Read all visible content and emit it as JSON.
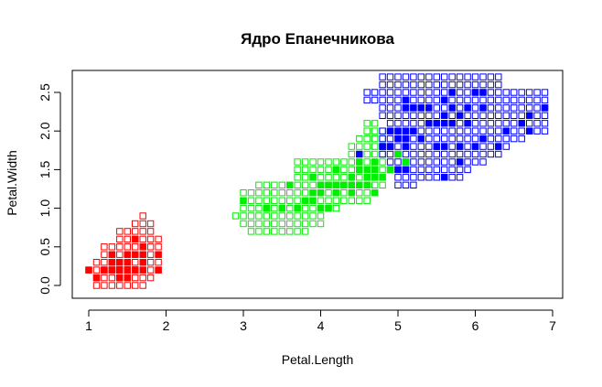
{
  "chart_data": {
    "type": "scatter",
    "title": "Ядро Епанечникова",
    "xlabel": "Petal.Length",
    "ylabel": "Petal.Width",
    "xlim": [
      0.8,
      7.1
    ],
    "ylim": [
      -0.1,
      2.75
    ],
    "x_ticks": [
      "1",
      "2",
      "3",
      "4",
      "5",
      "6",
      "7"
    ],
    "y_ticks": [
      "0.0",
      "0.5",
      "1.0",
      "1.5",
      "2.0",
      "2.5"
    ],
    "grid": false,
    "marker_grid_step": 0.1,
    "classes": [
      {
        "color": "#ff0000",
        "region_rows": [
          {
            "y": 0.9,
            "x_from": 1.7,
            "x_to": 1.7
          },
          {
            "y": 0.8,
            "x_from": 1.6,
            "x_to": 1.8
          },
          {
            "y": 0.7,
            "x_from": 1.4,
            "x_to": 1.8
          },
          {
            "y": 0.6,
            "x_from": 1.4,
            "x_to": 1.9
          },
          {
            "y": 0.5,
            "x_from": 1.2,
            "x_to": 1.9
          },
          {
            "y": 0.4,
            "x_from": 1.2,
            "x_to": 1.9
          },
          {
            "y": 0.3,
            "x_from": 1.1,
            "x_to": 1.9
          },
          {
            "y": 0.2,
            "x_from": 1.0,
            "x_to": 1.9
          },
          {
            "y": 0.1,
            "x_from": 1.1,
            "x_to": 1.8
          },
          {
            "y": 0.0,
            "x_from": 1.1,
            "x_to": 1.7
          }
        ],
        "points": [
          [
            1.4,
            0.2
          ],
          [
            1.4,
            0.2
          ],
          [
            1.3,
            0.2
          ],
          [
            1.5,
            0.2
          ],
          [
            1.4,
            0.2
          ],
          [
            1.7,
            0.4
          ],
          [
            1.4,
            0.3
          ],
          [
            1.5,
            0.2
          ],
          [
            1.4,
            0.2
          ],
          [
            1.5,
            0.1
          ],
          [
            1.5,
            0.2
          ],
          [
            1.6,
            0.2
          ],
          [
            1.4,
            0.1
          ],
          [
            1.1,
            0.1
          ],
          [
            1.2,
            0.2
          ],
          [
            1.5,
            0.4
          ],
          [
            1.3,
            0.4
          ],
          [
            1.4,
            0.3
          ],
          [
            1.7,
            0.3
          ],
          [
            1.5,
            0.3
          ],
          [
            1.7,
            0.2
          ],
          [
            1.5,
            0.4
          ],
          [
            1.0,
            0.2
          ],
          [
            1.7,
            0.5
          ],
          [
            1.9,
            0.2
          ],
          [
            1.6,
            0.2
          ],
          [
            1.6,
            0.4
          ],
          [
            1.5,
            0.2
          ],
          [
            1.4,
            0.2
          ],
          [
            1.6,
            0.2
          ],
          [
            1.6,
            0.2
          ],
          [
            1.5,
            0.4
          ],
          [
            1.5,
            0.1
          ],
          [
            1.4,
            0.2
          ],
          [
            1.5,
            0.2
          ],
          [
            1.2,
            0.2
          ],
          [
            1.3,
            0.2
          ],
          [
            1.4,
            0.1
          ],
          [
            1.3,
            0.2
          ],
          [
            1.5,
            0.2
          ],
          [
            1.3,
            0.3
          ],
          [
            1.3,
            0.3
          ],
          [
            1.3,
            0.2
          ],
          [
            1.6,
            0.6
          ],
          [
            1.9,
            0.4
          ],
          [
            1.4,
            0.3
          ],
          [
            1.6,
            0.2
          ],
          [
            1.4,
            0.2
          ],
          [
            1.5,
            0.2
          ],
          [
            1.4,
            0.2
          ]
        ]
      },
      {
        "color": "#00ee00",
        "region_rows": [
          {
            "y": 2.1,
            "x_from": 4.6,
            "x_to": 4.7
          },
          {
            "y": 2.0,
            "x_from": 4.6,
            "x_to": 4.8
          },
          {
            "y": 1.9,
            "x_from": 4.5,
            "x_to": 4.8
          },
          {
            "y": 1.8,
            "x_from": 4.4,
            "x_to": 4.8
          },
          {
            "y": 1.7,
            "x_from": 4.4,
            "x_to": 4.8
          },
          {
            "y": 1.6,
            "x_from": 3.7,
            "x_to": 4.8
          },
          {
            "y": 1.5,
            "x_from": 3.7,
            "x_to": 4.8
          },
          {
            "y": 1.4,
            "x_from": 3.7,
            "x_to": 4.8
          },
          {
            "y": 1.3,
            "x_from": 3.2,
            "x_to": 4.8
          },
          {
            "y": 1.2,
            "x_from": 3.0,
            "x_to": 4.6
          },
          {
            "y": 1.1,
            "x_from": 3.0,
            "x_to": 4.6
          },
          {
            "y": 1.0,
            "x_from": 3.0,
            "x_to": 4.2
          },
          {
            "y": 0.9,
            "x_from": 2.9,
            "x_to": 4.0
          },
          {
            "y": 0.8,
            "x_from": 3.0,
            "x_to": 4.0
          },
          {
            "y": 0.7,
            "x_from": 3.1,
            "x_to": 3.8
          }
        ],
        "points": [
          [
            4.7,
            1.4
          ],
          [
            4.5,
            1.5
          ],
          [
            4.9,
            1.5
          ],
          [
            4.0,
            1.3
          ],
          [
            4.6,
            1.5
          ],
          [
            4.5,
            1.3
          ],
          [
            4.7,
            1.6
          ],
          [
            3.3,
            1.0
          ],
          [
            4.6,
            1.3
          ],
          [
            3.9,
            1.4
          ],
          [
            3.5,
            1.0
          ],
          [
            4.2,
            1.5
          ],
          [
            4.0,
            1.0
          ],
          [
            4.7,
            1.4
          ],
          [
            3.6,
            1.3
          ],
          [
            4.4,
            1.4
          ],
          [
            4.5,
            1.5
          ],
          [
            4.1,
            1.0
          ],
          [
            4.5,
            1.5
          ],
          [
            3.9,
            1.1
          ],
          [
            4.8,
            1.8
          ],
          [
            4.0,
            1.3
          ],
          [
            4.9,
            1.5
          ],
          [
            4.7,
            1.2
          ],
          [
            4.3,
            1.3
          ],
          [
            4.4,
            1.4
          ],
          [
            4.8,
            1.4
          ],
          [
            5.0,
            1.7
          ],
          [
            4.5,
            1.5
          ],
          [
            3.5,
            1.0
          ],
          [
            3.8,
            1.1
          ],
          [
            3.7,
            1.0
          ],
          [
            3.9,
            1.2
          ],
          [
            5.1,
            1.6
          ],
          [
            4.5,
            1.5
          ],
          [
            4.5,
            1.6
          ],
          [
            4.7,
            1.5
          ],
          [
            4.4,
            1.3
          ],
          [
            4.1,
            1.3
          ],
          [
            4.0,
            1.3
          ],
          [
            4.4,
            1.2
          ],
          [
            4.6,
            1.4
          ],
          [
            4.0,
            1.2
          ],
          [
            3.3,
            1.0
          ],
          [
            4.2,
            1.3
          ],
          [
            4.2,
            1.2
          ],
          [
            4.2,
            1.3
          ],
          [
            4.3,
            1.3
          ],
          [
            3.0,
            1.1
          ],
          [
            4.1,
            1.3
          ]
        ]
      },
      {
        "color": "#0000ff",
        "region_rows": [
          {
            "y": 2.7,
            "x_from": 4.8,
            "x_to": 6.3
          },
          {
            "y": 2.6,
            "x_from": 4.8,
            "x_to": 6.3
          },
          {
            "y": 2.5,
            "x_from": 4.6,
            "x_to": 6.9
          },
          {
            "y": 2.4,
            "x_from": 4.6,
            "x_to": 6.9
          },
          {
            "y": 2.3,
            "x_from": 4.8,
            "x_to": 6.9
          },
          {
            "y": 2.2,
            "x_from": 4.8,
            "x_to": 6.9
          },
          {
            "y": 2.1,
            "x_from": 4.9,
            "x_to": 6.9
          },
          {
            "y": 2.0,
            "x_from": 4.8,
            "x_to": 6.9
          },
          {
            "y": 1.9,
            "x_from": 4.8,
            "x_to": 6.6
          },
          {
            "y": 1.8,
            "x_from": 4.8,
            "x_to": 6.4
          },
          {
            "y": 1.7,
            "x_from": 4.8,
            "x_to": 6.3
          },
          {
            "y": 1.6,
            "x_from": 4.9,
            "x_to": 6.1
          },
          {
            "y": 1.5,
            "x_from": 4.9,
            "x_to": 5.9
          },
          {
            "y": 1.4,
            "x_from": 5.0,
            "x_to": 5.8
          },
          {
            "y": 1.3,
            "x_from": 5.0,
            "x_to": 5.2
          }
        ],
        "points": [
          [
            6.0,
            2.5
          ],
          [
            5.1,
            1.9
          ],
          [
            5.9,
            2.1
          ],
          [
            5.6,
            1.8
          ],
          [
            5.8,
            2.2
          ],
          [
            6.6,
            2.1
          ],
          [
            4.5,
            1.7
          ],
          [
            6.3,
            1.8
          ],
          [
            5.8,
            1.8
          ],
          [
            6.1,
            2.5
          ],
          [
            5.1,
            2.0
          ],
          [
            5.3,
            1.9
          ],
          [
            5.5,
            2.1
          ],
          [
            5.0,
            2.0
          ],
          [
            5.1,
            2.4
          ],
          [
            5.3,
            2.3
          ],
          [
            5.5,
            1.8
          ],
          [
            6.7,
            2.2
          ],
          [
            6.9,
            2.3
          ],
          [
            5.0,
            1.5
          ],
          [
            5.7,
            2.3
          ],
          [
            4.9,
            2.0
          ],
          [
            6.7,
            2.0
          ],
          [
            4.9,
            1.8
          ],
          [
            5.7,
            2.1
          ],
          [
            6.0,
            1.8
          ],
          [
            4.8,
            1.8
          ],
          [
            4.9,
            1.8
          ],
          [
            5.6,
            2.1
          ],
          [
            5.8,
            1.6
          ],
          [
            6.1,
            1.9
          ],
          [
            6.4,
            2.0
          ],
          [
            5.6,
            2.2
          ],
          [
            5.1,
            1.5
          ],
          [
            5.6,
            1.4
          ],
          [
            6.1,
            2.3
          ],
          [
            5.6,
            2.4
          ],
          [
            5.5,
            1.8
          ],
          [
            4.8,
            1.8
          ],
          [
            5.4,
            2.1
          ],
          [
            5.6,
            2.4
          ],
          [
            5.1,
            2.3
          ],
          [
            5.1,
            1.9
          ],
          [
            5.9,
            2.3
          ],
          [
            5.7,
            2.5
          ],
          [
            5.2,
            2.3
          ],
          [
            5.0,
            1.9
          ],
          [
            5.2,
            2.0
          ],
          [
            5.4,
            2.3
          ],
          [
            5.1,
            1.8
          ]
        ]
      }
    ]
  }
}
